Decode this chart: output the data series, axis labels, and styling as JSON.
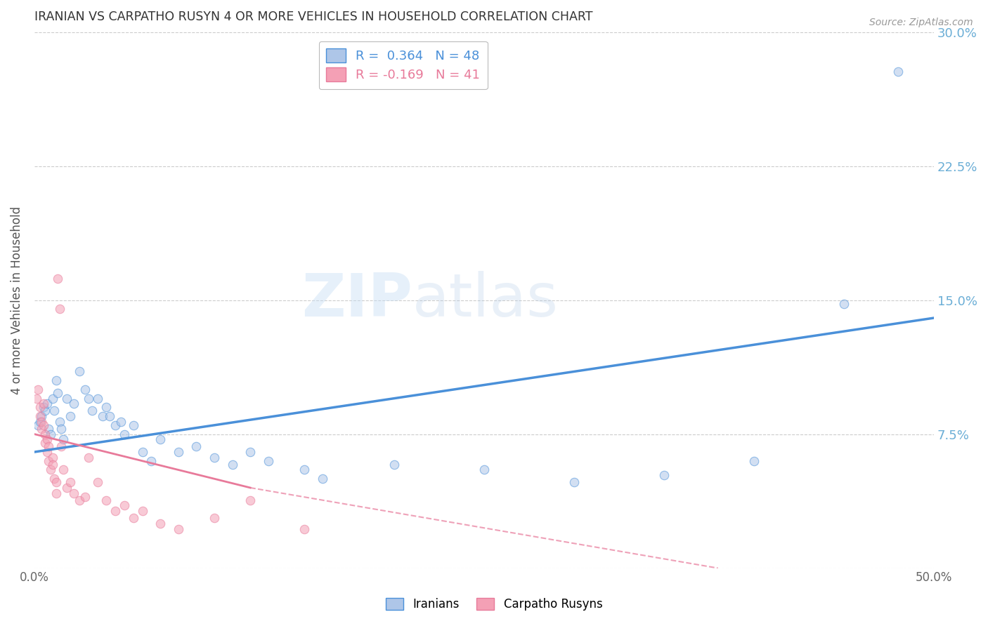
{
  "title": "IRANIAN VS CARPATHO RUSYN 4 OR MORE VEHICLES IN HOUSEHOLD CORRELATION CHART",
  "source": "Source: ZipAtlas.com",
  "ylabel": "4 or more Vehicles in Household",
  "xlim": [
    0.0,
    0.5
  ],
  "ylim": [
    0.0,
    0.3
  ],
  "xticks": [
    0.0,
    0.1,
    0.2,
    0.3,
    0.4,
    0.5
  ],
  "yticks": [
    0.0,
    0.075,
    0.15,
    0.225,
    0.3
  ],
  "xticklabels": [
    "0.0%",
    "",
    "",
    "",
    "",
    "50.0%"
  ],
  "yticklabels_right": [
    "",
    "7.5%",
    "15.0%",
    "22.5%",
    "30.0%"
  ],
  "legend_iranian_R": "0.364",
  "legend_iranian_N": "48",
  "legend_carpatho_R": "-0.169",
  "legend_carpatho_N": "41",
  "iranian_color": "#aec6e8",
  "carpatho_color": "#f4a0b5",
  "iranian_line_color": "#4a90d9",
  "carpatho_line_color": "#e87a9a",
  "watermark": "ZIPatlas",
  "iranian_points": [
    [
      0.002,
      0.08
    ],
    [
      0.003,
      0.082
    ],
    [
      0.004,
      0.085
    ],
    [
      0.005,
      0.09
    ],
    [
      0.006,
      0.088
    ],
    [
      0.007,
      0.092
    ],
    [
      0.008,
      0.078
    ],
    [
      0.009,
      0.075
    ],
    [
      0.01,
      0.095
    ],
    [
      0.011,
      0.088
    ],
    [
      0.012,
      0.105
    ],
    [
      0.013,
      0.098
    ],
    [
      0.014,
      0.082
    ],
    [
      0.015,
      0.078
    ],
    [
      0.016,
      0.072
    ],
    [
      0.018,
      0.095
    ],
    [
      0.02,
      0.085
    ],
    [
      0.022,
      0.092
    ],
    [
      0.025,
      0.11
    ],
    [
      0.028,
      0.1
    ],
    [
      0.03,
      0.095
    ],
    [
      0.032,
      0.088
    ],
    [
      0.035,
      0.095
    ],
    [
      0.038,
      0.085
    ],
    [
      0.04,
      0.09
    ],
    [
      0.042,
      0.085
    ],
    [
      0.045,
      0.08
    ],
    [
      0.048,
      0.082
    ],
    [
      0.05,
      0.075
    ],
    [
      0.055,
      0.08
    ],
    [
      0.06,
      0.065
    ],
    [
      0.065,
      0.06
    ],
    [
      0.07,
      0.072
    ],
    [
      0.08,
      0.065
    ],
    [
      0.09,
      0.068
    ],
    [
      0.1,
      0.062
    ],
    [
      0.11,
      0.058
    ],
    [
      0.12,
      0.065
    ],
    [
      0.13,
      0.06
    ],
    [
      0.15,
      0.055
    ],
    [
      0.16,
      0.05
    ],
    [
      0.2,
      0.058
    ],
    [
      0.25,
      0.055
    ],
    [
      0.3,
      0.048
    ],
    [
      0.35,
      0.052
    ],
    [
      0.4,
      0.06
    ],
    [
      0.45,
      0.148
    ],
    [
      0.48,
      0.278
    ]
  ],
  "carpatho_points": [
    [
      0.001,
      0.095
    ],
    [
      0.002,
      0.1
    ],
    [
      0.003,
      0.085
    ],
    [
      0.003,
      0.09
    ],
    [
      0.004,
      0.078
    ],
    [
      0.004,
      0.082
    ],
    [
      0.005,
      0.092
    ],
    [
      0.005,
      0.08
    ],
    [
      0.006,
      0.075
    ],
    [
      0.006,
      0.07
    ],
    [
      0.007,
      0.065
    ],
    [
      0.007,
      0.072
    ],
    [
      0.008,
      0.068
    ],
    [
      0.008,
      0.06
    ],
    [
      0.009,
      0.055
    ],
    [
      0.01,
      0.062
    ],
    [
      0.01,
      0.058
    ],
    [
      0.011,
      0.05
    ],
    [
      0.012,
      0.048
    ],
    [
      0.012,
      0.042
    ],
    [
      0.013,
      0.162
    ],
    [
      0.014,
      0.145
    ],
    [
      0.015,
      0.068
    ],
    [
      0.016,
      0.055
    ],
    [
      0.018,
      0.045
    ],
    [
      0.02,
      0.048
    ],
    [
      0.022,
      0.042
    ],
    [
      0.025,
      0.038
    ],
    [
      0.028,
      0.04
    ],
    [
      0.03,
      0.062
    ],
    [
      0.035,
      0.048
    ],
    [
      0.04,
      0.038
    ],
    [
      0.045,
      0.032
    ],
    [
      0.05,
      0.035
    ],
    [
      0.055,
      0.028
    ],
    [
      0.06,
      0.032
    ],
    [
      0.07,
      0.025
    ],
    [
      0.08,
      0.022
    ],
    [
      0.1,
      0.028
    ],
    [
      0.12,
      0.038
    ],
    [
      0.15,
      0.022
    ]
  ],
  "background_color": "#ffffff",
  "grid_color": "#cccccc",
  "title_color": "#333333",
  "axis_label_color": "#555555",
  "tick_color_right": "#6baed6",
  "marker_size": 9,
  "marker_alpha": 0.55
}
